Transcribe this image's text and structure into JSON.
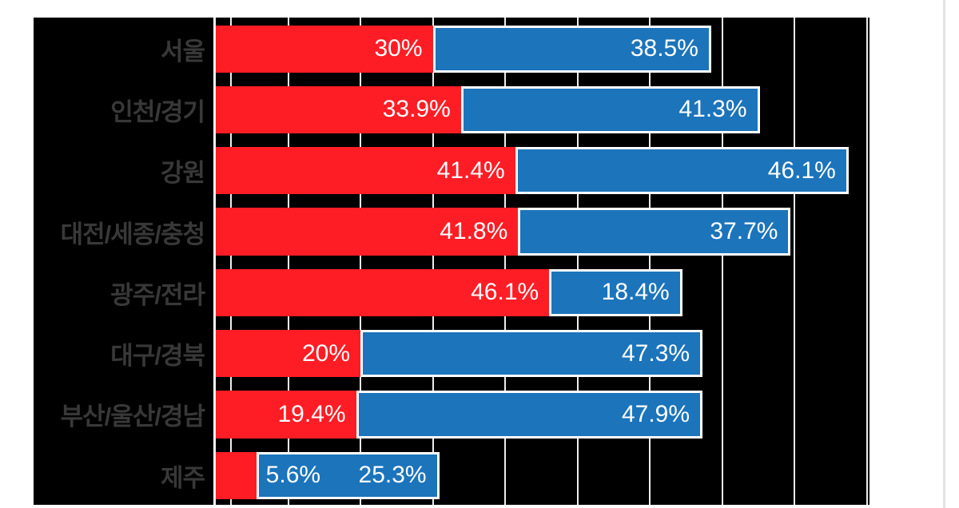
{
  "page": {
    "background": "#ffffff",
    "chart_background": "#000000",
    "divider_color": "#e3e3e3"
  },
  "chart_data": {
    "type": "bar",
    "orientation": "horizontal",
    "stacked": true,
    "title": "",
    "legend": null,
    "value_axis": {
      "min": 0,
      "max": 90.7,
      "major_unit": 10,
      "extra_gridline_at": 2.1,
      "tick_labels_visible": false
    },
    "grid": true,
    "categories": [
      "서울",
      "인천/경기",
      "강원",
      "대전/세종/충청",
      "광주/전라",
      "대구/경북",
      "부산/울산/경남",
      "제주"
    ],
    "series": [
      {
        "name": "red-series",
        "color": "#ff1d25",
        "values": [
          30,
          33.9,
          41.4,
          41.8,
          46.1,
          20,
          19.4,
          5.6
        ],
        "labels": [
          "30%",
          "33.9%",
          "41.4%",
          "41.8%",
          "46.1%",
          "20%",
          "19.4%",
          "5.6%"
        ]
      },
      {
        "name": "blue-series",
        "color": "#1c74bb",
        "values": [
          38.5,
          41.3,
          46.1,
          37.7,
          18.4,
          47.3,
          47.9,
          25.3
        ],
        "labels": [
          "38.5%",
          "41.3%",
          "46.1%",
          "37.7%",
          "18.4%",
          "47.3%",
          "47.9%",
          "25.3%"
        ]
      }
    ],
    "styles": {
      "category_label_color": "#383838",
      "value_label_color": "#ffffff",
      "gridline_color": "#ededed",
      "axis_line_color": "#f7f7f7",
      "blue_bar_border_color": "#ffffff"
    }
  }
}
